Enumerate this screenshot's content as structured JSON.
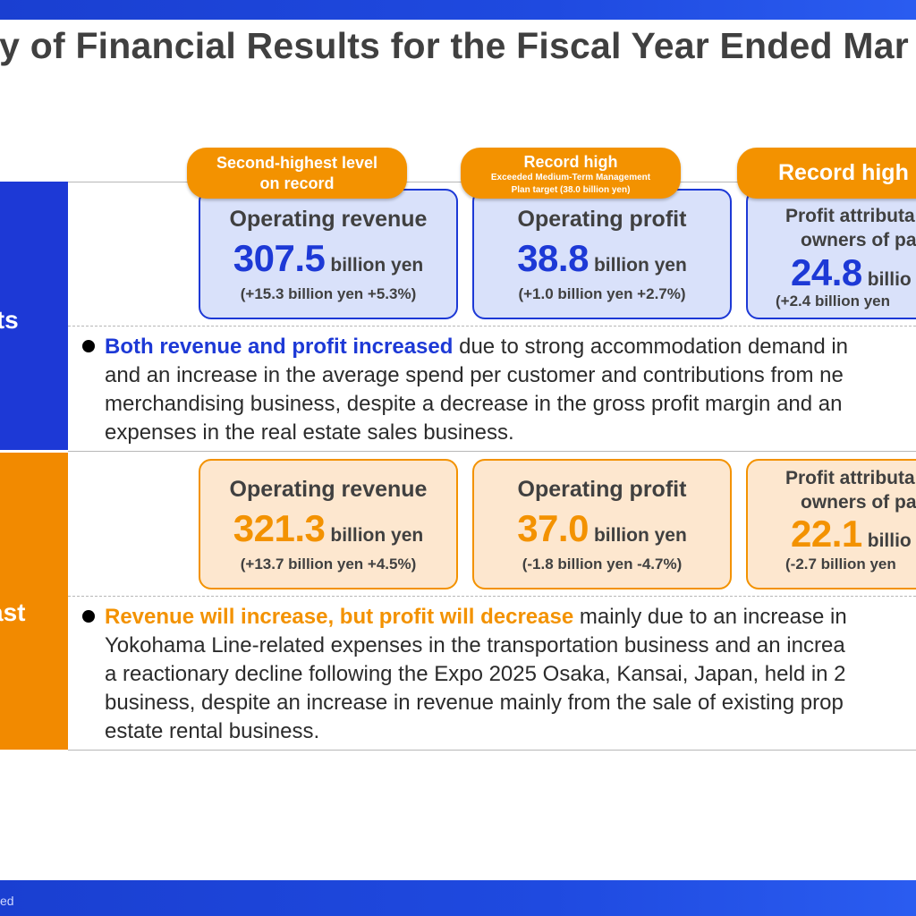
{
  "title": "ry of Financial Results for the Fiscal Year Ended Mar",
  "side_labels": {
    "results": "lts",
    "forecast": "ast"
  },
  "tags": {
    "revenue": "Second-highest level on record",
    "profit": {
      "main": "Record high",
      "sub1": "Exceeded Medium-Term Management",
      "sub2": "Plan target (38.0 billion yen)"
    },
    "net": "Record high"
  },
  "results_cards": [
    {
      "label_line1": "Operating revenue",
      "label_line2": "",
      "value": "307.5",
      "unit": "billion yen",
      "change": "(+15.3 billion yen +5.3%)"
    },
    {
      "label_line1": "Operating profit",
      "label_line2": "",
      "value": "38.8",
      "unit": "billion yen",
      "change": "(+1.0 billion yen +2.7%)"
    },
    {
      "label_line1": "Profit attributa",
      "label_line2": "owners of pa",
      "value": "24.8",
      "unit": "billio",
      "change": "(+2.4 billion yen"
    }
  ],
  "forecast_cards": [
    {
      "label_line1": "Operating revenue",
      "label_line2": "",
      "value": "321.3",
      "unit": "billion yen",
      "change": "(+13.7 billion yen +4.5%)"
    },
    {
      "label_line1": "Operating profit",
      "label_line2": "",
      "value": "37.0",
      "unit": "billion yen",
      "change": "(-1.8 billion yen -4.7%)"
    },
    {
      "label_line1": "Profit attributa",
      "label_line2": "owners of pa",
      "value": "22.1",
      "unit": "billio",
      "change": "(-2.7 billion yen"
    }
  ],
  "results_bullet": {
    "highlight": "Both revenue and profit increased",
    "line1_rest": " due to strong accommodation demand in",
    "line2": "and an increase in the average spend per customer and contributions from ne",
    "line3": "merchandising business, despite a decrease in the gross profit margin and an",
    "line4": "expenses in the real estate sales business."
  },
  "forecast_bullet": {
    "highlight": "Revenue will increase, but profit will decrease",
    "line1_rest": " mainly due to an increase in",
    "line2": "Yokohama Line-related expenses in the transportation business and an increa",
    "line3": "a reactionary decline following the Expo 2025 Osaka, Kansai, Japan, held in 2",
    "line4": "business, despite an increase in revenue mainly from the sale of existing prop",
    "line5": "estate rental business."
  },
  "footer": "ed",
  "colors": {
    "blue": "#1d39d6",
    "orange": "#f39200",
    "text": "#404040"
  }
}
